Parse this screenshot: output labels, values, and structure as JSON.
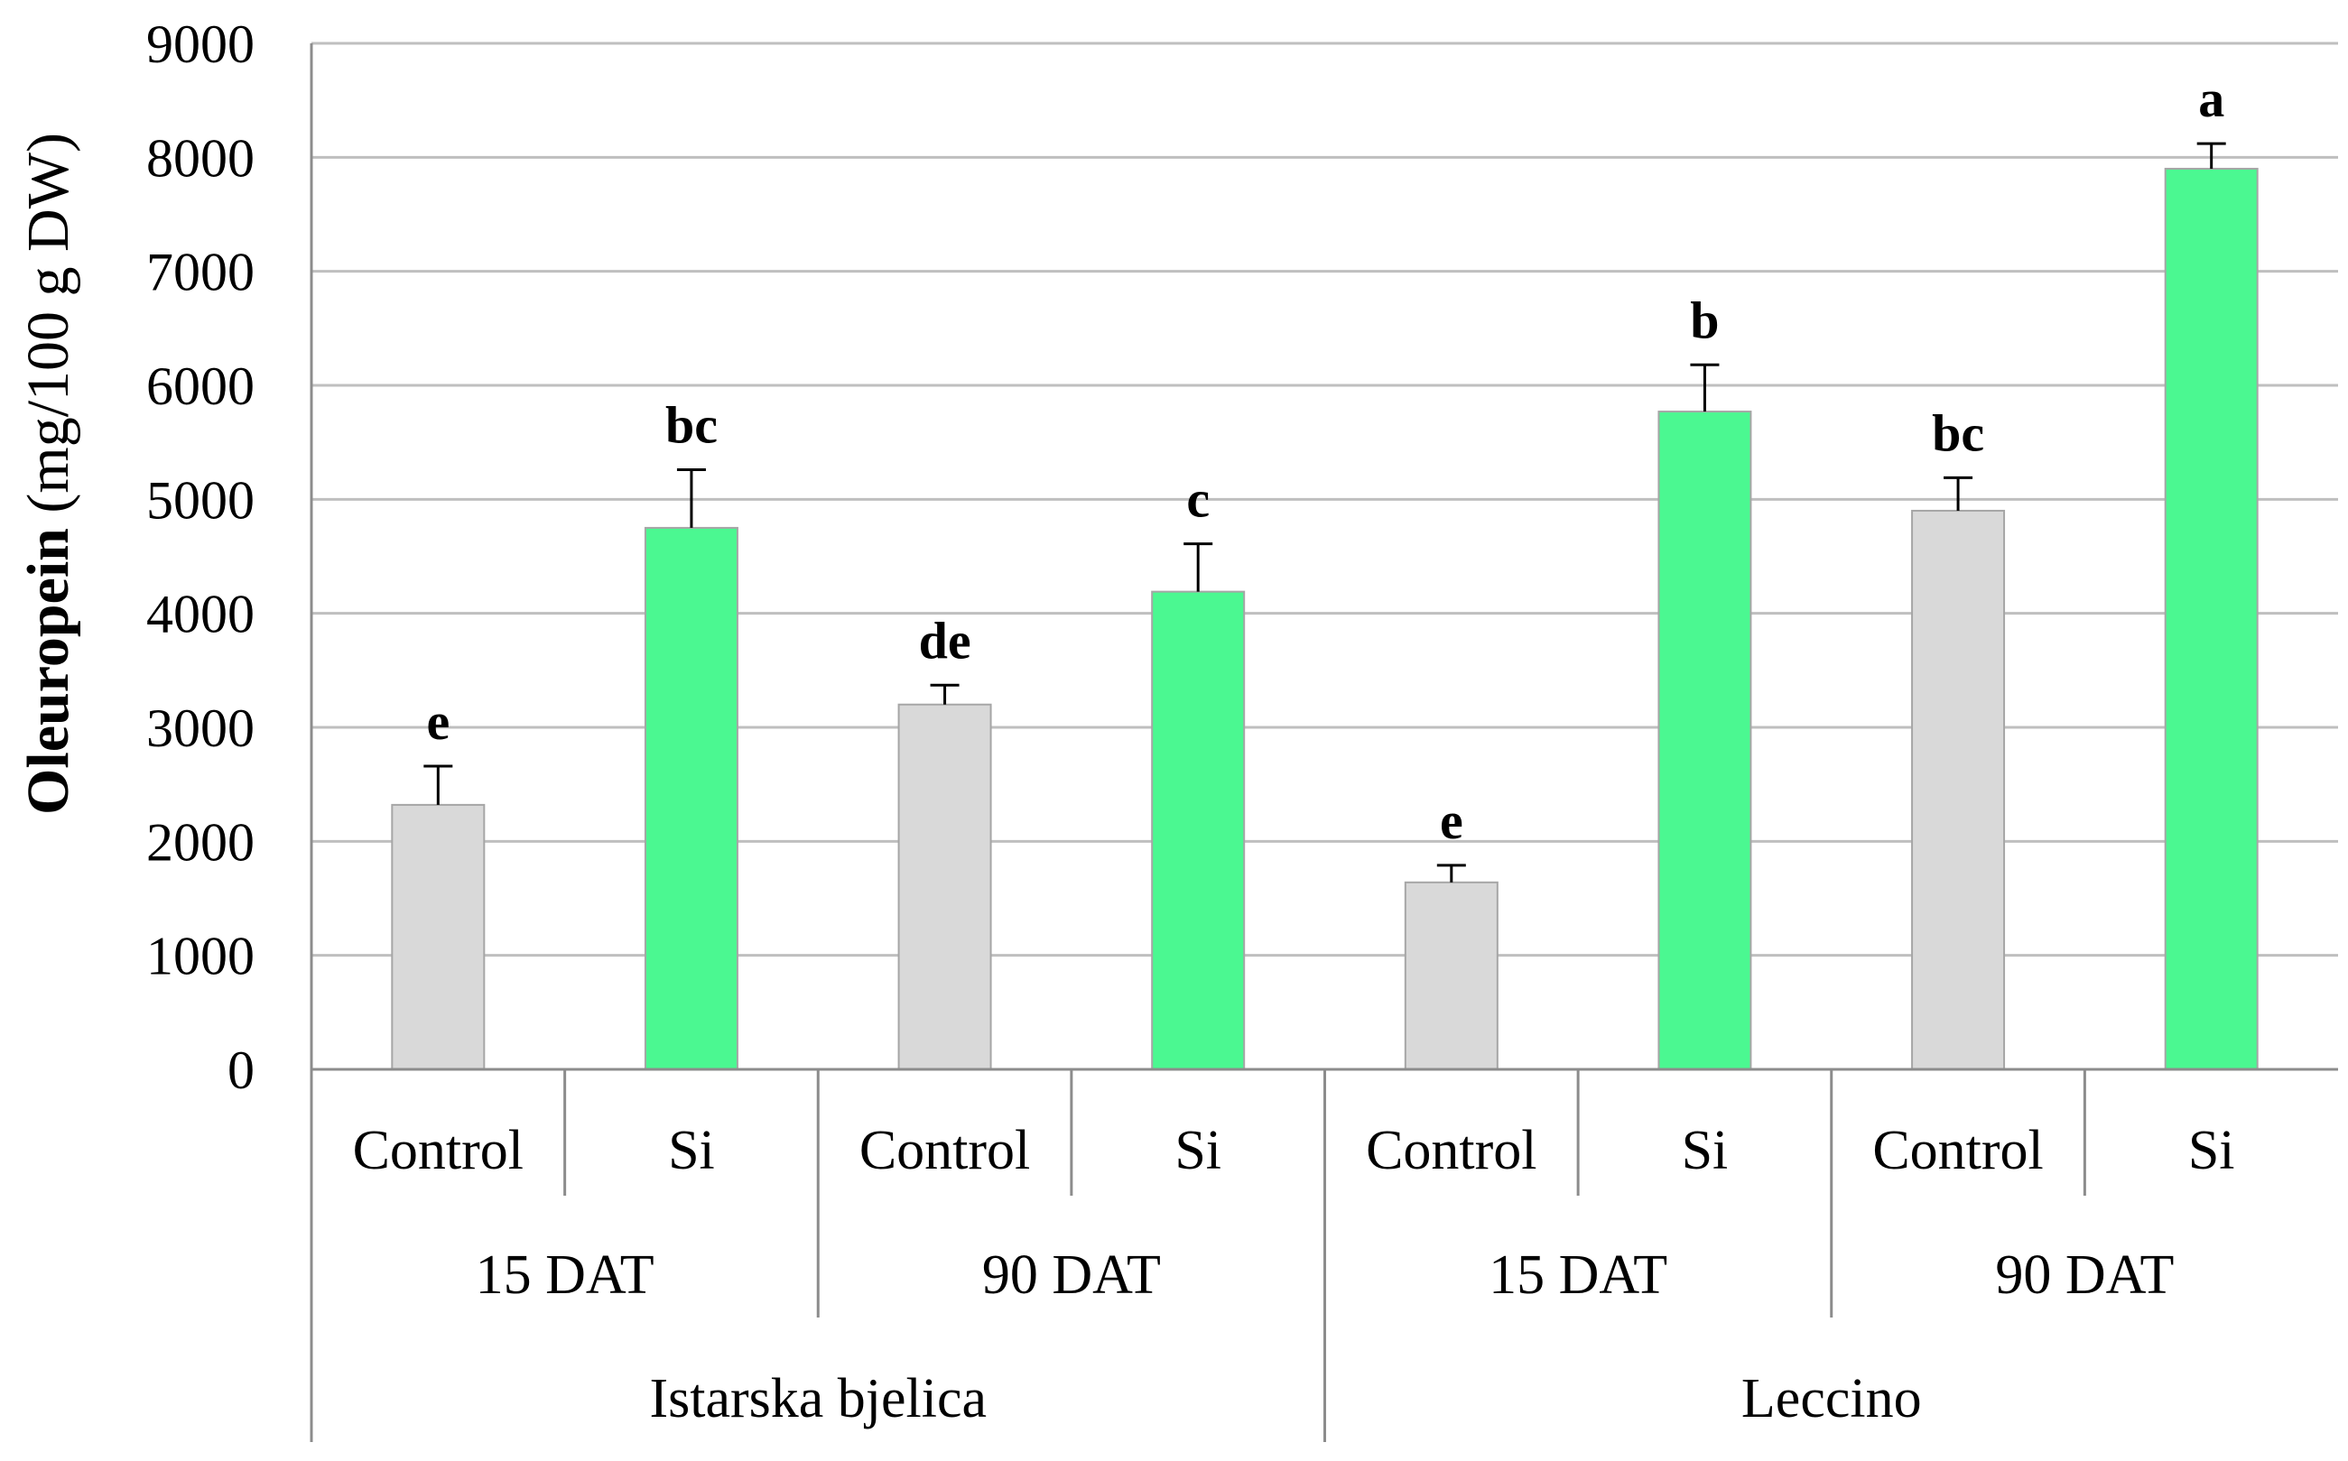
{
  "chart_data": {
    "type": "bar",
    "ylabel_main": "Oleuropein",
    "ylabel_unit": "(mg/100 g DW)",
    "ylim": [
      0,
      9000
    ],
    "yticks": [
      0,
      1000,
      2000,
      3000,
      4000,
      5000,
      6000,
      7000,
      8000,
      9000
    ],
    "grid": true,
    "colors": {
      "Control": "#d9d9d9",
      "Si": "#4bf891",
      "grid": "#bfbfbf",
      "error": "#000000"
    },
    "bars": [
      {
        "cultivar": "Istarska bjelica",
        "time": "15 DAT",
        "treatment": "Control",
        "value": 2320,
        "error": 340,
        "letter": "e"
      },
      {
        "cultivar": "Istarska bjelica",
        "time": "15 DAT",
        "treatment": "Si",
        "value": 4750,
        "error": 510,
        "letter": "bc"
      },
      {
        "cultivar": "Istarska bjelica",
        "time": "90 DAT",
        "treatment": "Control",
        "value": 3200,
        "error": 170,
        "letter": "de"
      },
      {
        "cultivar": "Istarska bjelica",
        "time": "90 DAT",
        "treatment": "Si",
        "value": 4190,
        "error": 420,
        "letter": "c"
      },
      {
        "cultivar": "Leccino",
        "time": "15 DAT",
        "treatment": "Control",
        "value": 1640,
        "error": 150,
        "letter": "e"
      },
      {
        "cultivar": "Leccino",
        "time": "15 DAT",
        "treatment": "Si",
        "value": 5770,
        "error": 410,
        "letter": "b"
      },
      {
        "cultivar": "Leccino",
        "time": "90 DAT",
        "treatment": "Control",
        "value": 4900,
        "error": 290,
        "letter": "bc"
      },
      {
        "cultivar": "Leccino",
        "time": "90 DAT",
        "treatment": "Si",
        "value": 7900,
        "error": 220,
        "letter": "a"
      }
    ],
    "time_groups": [
      "15 DAT",
      "90 DAT",
      "15 DAT",
      "90 DAT"
    ],
    "cultivars": [
      "Istarska bjelica",
      "Leccino"
    ]
  }
}
